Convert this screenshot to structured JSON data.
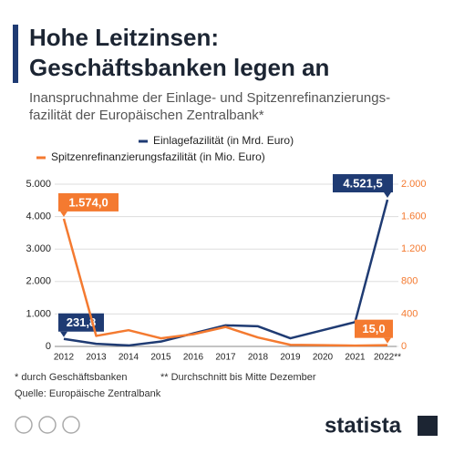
{
  "chart_data": {
    "type": "line",
    "title": [
      "Hohe Leitzinsen:",
      "Geschäftsbanken legen an"
    ],
    "subtitle": [
      "Inanspruchnahme der Einlage- und Spitzenrefinanzierungs-",
      "fazilität der Europäischen Zentralbank*"
    ],
    "categories": [
      "2012",
      "2013",
      "2014",
      "2015",
      "2016",
      "2017",
      "2018",
      "2019",
      "2020",
      "2021",
      "2022**"
    ],
    "series": [
      {
        "name": "Einlagefazilität (in Mrd. Euro)",
        "color": "#1f3b73",
        "values": [
          231.8,
          80,
          30,
          150,
          400,
          650,
          620,
          250,
          500,
          750,
          4521.5
        ],
        "value_labels": [
          "231,8",
          null,
          null,
          null,
          null,
          null,
          null,
          null,
          null,
          null,
          "4.521,5"
        ]
      },
      {
        "name": "Spitzenrefinanzierungsfazilität (in Mio. Euro)",
        "color": "#f47a30",
        "axis": "y2",
        "values": [
          1574.0,
          130,
          200,
          100,
          150,
          240,
          110,
          20,
          15,
          10,
          15.0
        ],
        "value_labels": [
          "1.574,0",
          null,
          null,
          null,
          null,
          null,
          null,
          null,
          null,
          null,
          "15,0"
        ]
      }
    ],
    "ylim": [
      0,
      5000
    ],
    "yticks": [
      0,
      {
        "value": 1000,
        "label": "1.000"
      },
      {
        "value": 2000,
        "label": "2.000"
      },
      {
        "value": 3000,
        "label": "3.000"
      },
      {
        "value": 4000,
        "label": "4.000"
      },
      {
        "value": 5000,
        "label": "5.000"
      }
    ],
    "y2lim": [
      0,
      2000
    ],
    "y2ticks": [
      0,
      400,
      800,
      {
        "value": 1200,
        "label": "1.200"
      },
      {
        "value": 1600,
        "label": "1.600"
      },
      {
        "value": 2000,
        "label": "2.000"
      }
    ],
    "grid": true,
    "notes": [
      "* durch Geschäftsbanken",
      "** Durchschnitt bis Mitte Dezember"
    ],
    "source": "Quelle: Europäische Zentralbank",
    "brand": "statista"
  }
}
